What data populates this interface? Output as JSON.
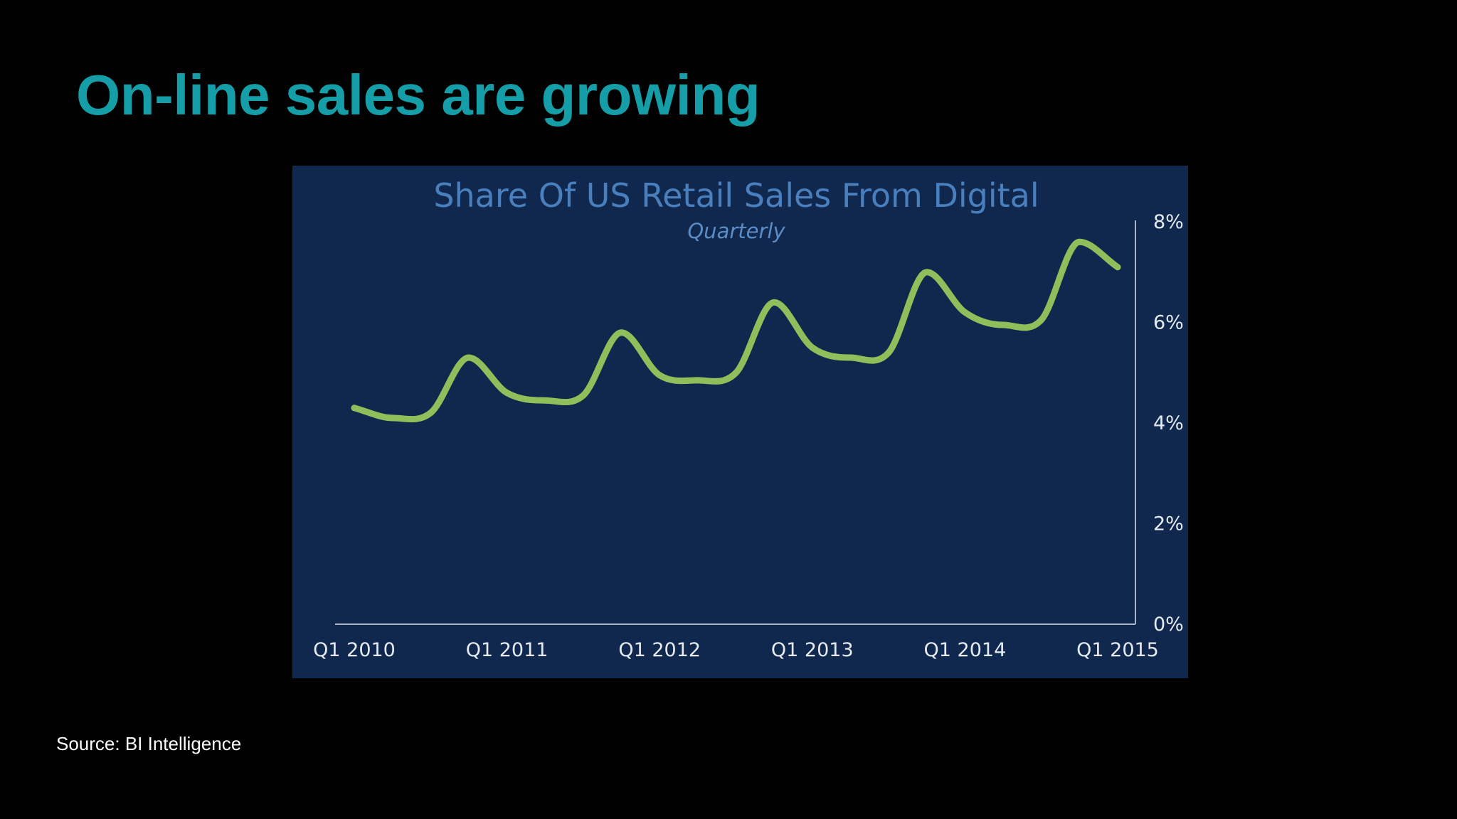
{
  "slide": {
    "title": "On-line sales are growing",
    "source": "Source: BI Intelligence"
  },
  "colors": {
    "background": "#000000",
    "title": "#159ea8",
    "panel": "#10284e",
    "chart_title": "#4a7fbd",
    "chart_subtitle": "#5c8cc6",
    "line": "#8fbf5a",
    "axis": "#a9b5c6",
    "tick_text": "#e6ebf2",
    "source": "#ffffff"
  },
  "chart_data": {
    "type": "line",
    "title": "Share Of US Retail Sales From Digital",
    "subtitle": "Quarterly",
    "xlabel": "",
    "ylabel": "",
    "x": [
      2010.0,
      2010.25,
      2010.5,
      2010.75,
      2011.0,
      2011.25,
      2011.5,
      2011.75,
      2012.0,
      2012.25,
      2012.5,
      2012.75,
      2013.0,
      2013.25,
      2013.5,
      2013.75,
      2014.0,
      2014.25,
      2014.5,
      2014.75,
      2015.0
    ],
    "x_ticks": [
      2010,
      2011,
      2012,
      2013,
      2014,
      2015
    ],
    "x_tick_labels": [
      "Q1 2010",
      "Q1 2011",
      "Q1 2012",
      "Q1 2013",
      "Q1 2014",
      "Q1 2015"
    ],
    "series": [
      {
        "values": [
          4.3,
          4.1,
          4.2,
          5.3,
          4.6,
          4.45,
          4.55,
          5.8,
          4.95,
          4.85,
          5.0,
          6.4,
          5.5,
          5.3,
          5.4,
          7.0,
          6.2,
          5.95,
          6.05,
          7.6,
          7.1
        ]
      }
    ],
    "ylim": [
      0,
      8
    ],
    "y_ticks": [
      0,
      2,
      4,
      6,
      8
    ],
    "y_tick_labels": [
      "0%",
      "2%",
      "4%",
      "6%",
      "8%"
    ],
    "y_axis_position": "right",
    "grid": false,
    "legend": "none"
  }
}
